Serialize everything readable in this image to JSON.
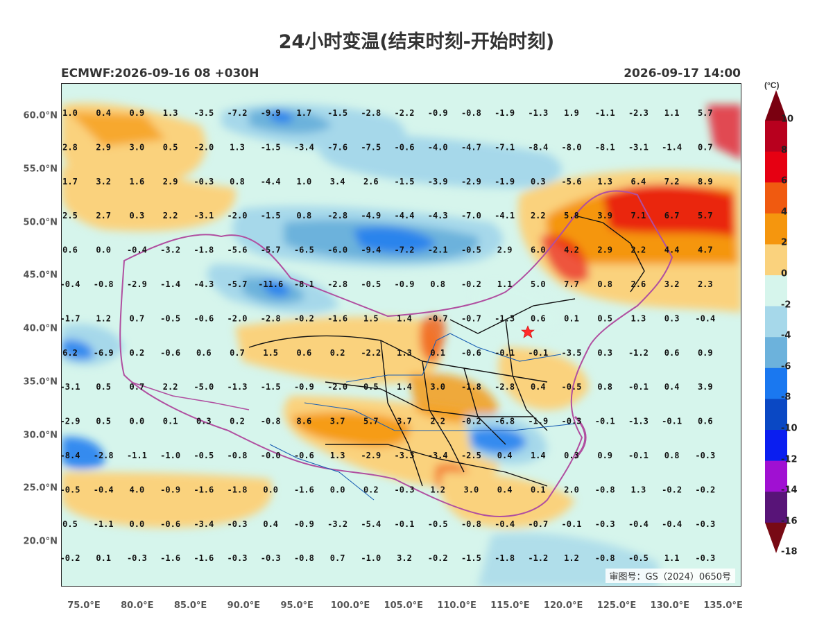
{
  "title": "24小时变温(结束时刻-开始时刻)",
  "model_info": "ECMWF:2026-09-16 08 +030H",
  "valid_time": "2026-09-17 14:00",
  "review_number": "审图号：GS（2024）0650号",
  "latitude_labels": [
    "60.0°N",
    "55.0°N",
    "50.0°N",
    "45.0°N",
    "40.0°N",
    "35.0°N",
    "30.0°N",
    "25.0°N",
    "20.0°N"
  ],
  "longitude_labels": [
    "75.0°E",
    "80.0°E",
    "85.0°E",
    "90.0°E",
    "95.0°E",
    "100.0°E",
    "105.0°E",
    "110.0°E",
    "115.0°E",
    "120.0°E",
    "125.0°E",
    "130.0°E",
    "135.0°E"
  ],
  "colorbar": {
    "unit": "(°C)",
    "labels": [
      "10",
      "8",
      "6",
      "4",
      "2",
      "0",
      "-2",
      "-4",
      "-6",
      "-8",
      "-10",
      "-12",
      "-14",
      "-16",
      "-18"
    ],
    "colors": [
      "#7a0010",
      "#b8001e",
      "#e60012",
      "#f05a10",
      "#f5960e",
      "#fad27d",
      "#d6f5ec",
      "#a6d8ea",
      "#6cb2dc",
      "#1a78f0",
      "#0a48c4",
      "#0a1ef0",
      "#a010d2",
      "#581478",
      "#780a14"
    ]
  },
  "grid_values": [
    [
      "1.0",
      "0.4",
      "0.9",
      "1.3",
      "-3.5",
      "-7.2",
      "-9.9",
      "1.7",
      "-1.5",
      "-2.8",
      "-2.2",
      "-0.9",
      "-0.8",
      "-1.9",
      "-1.3",
      "1.9",
      "-1.1",
      "-2.3",
      "1.1",
      "5.7"
    ],
    [
      "2.8",
      "2.9",
      "3.0",
      "0.5",
      "-2.0",
      "1.3",
      "-1.5",
      "-3.4",
      "-7.6",
      "-7.5",
      "-0.6",
      "-4.0",
      "-4.7",
      "-7.1",
      "-8.4",
      "-8.0",
      "-8.1",
      "-3.1",
      "-1.4",
      "0.7"
    ],
    [
      "1.7",
      "3.2",
      "1.6",
      "2.9",
      "-0.3",
      "0.8",
      "-4.4",
      "1.0",
      "3.4",
      "2.6",
      "-1.5",
      "-3.9",
      "-2.9",
      "-1.9",
      "0.3",
      "-5.6",
      "1.3",
      "6.4",
      "7.2",
      "8.9"
    ],
    [
      "2.5",
      "2.7",
      "0.3",
      "2.2",
      "-3.1",
      "-2.0",
      "-1.5",
      "0.8",
      "-2.8",
      "-4.9",
      "-4.4",
      "-4.3",
      "-7.0",
      "-4.1",
      "2.2",
      "5.8",
      "3.9",
      "7.1",
      "6.7",
      "5.7"
    ],
    [
      "0.6",
      "0.0",
      "-0.4",
      "-3.2",
      "-1.8",
      "-5.6",
      "-5.7",
      "-6.5",
      "-6.0",
      "-9.4",
      "-7.2",
      "-2.1",
      "-0.5",
      "2.9",
      "6.0",
      "4.2",
      "2.9",
      "2.2",
      "4.4",
      "4.7"
    ],
    [
      "-0.4",
      "-0.8",
      "-2.9",
      "-1.4",
      "-4.3",
      "-5.7",
      "-11.6",
      "-8.1",
      "-2.8",
      "-0.5",
      "-0.9",
      "0.8",
      "-0.2",
      "1.1",
      "5.0",
      "7.7",
      "0.8",
      "2.6",
      "3.2",
      "2.3"
    ],
    [
      "-1.7",
      "1.2",
      "0.7",
      "-0.5",
      "-0.6",
      "-2.0",
      "-2.8",
      "-0.2",
      "-1.6",
      "1.5",
      "1.4",
      "-0.7",
      "-0.7",
      "-1.3",
      "0.6",
      "0.1",
      "0.5",
      "1.3",
      "0.3",
      "-0.4"
    ],
    [
      "6.2",
      "-6.9",
      "0.2",
      "-0.6",
      "0.6",
      "0.7",
      "1.5",
      "0.6",
      "0.2",
      "-2.2",
      "1.3",
      "0.1",
      "-0.6",
      "-0.1",
      "-0.1",
      "-3.5",
      "0.3",
      "-1.2",
      "0.6",
      "0.9"
    ],
    [
      "-3.1",
      "0.5",
      "0.7",
      "2.2",
      "-5.0",
      "-1.3",
      "-1.5",
      "-0.9",
      "-2.0",
      "0.5",
      "1.4",
      "3.0",
      "-1.8",
      "-2.8",
      "0.4",
      "-0.5",
      "0.8",
      "-0.1",
      "0.4",
      "3.9"
    ],
    [
      "-2.9",
      "0.5",
      "0.0",
      "0.1",
      "0.3",
      "0.2",
      "-0.8",
      "8.6",
      "3.7",
      "5.7",
      "3.7",
      "2.2",
      "-0.2",
      "-6.8",
      "-1.9",
      "-0.3",
      "-0.1",
      "-1.3",
      "-0.1",
      "0.6"
    ],
    [
      "-8.4",
      "-2.8",
      "-1.1",
      "-1.0",
      "-0.5",
      "-0.8",
      "-0.0",
      "-0.6",
      "1.3",
      "-2.9",
      "-3.3",
      "-3.4",
      "-2.5",
      "0.4",
      "1.4",
      "0.3",
      "0.9",
      "-0.1",
      "0.8",
      "-0.3"
    ],
    [
      "-0.5",
      "-0.4",
      "4.0",
      "-0.9",
      "-1.6",
      "-1.8",
      "0.0",
      "-1.6",
      "0.0",
      "0.2",
      "-0.3",
      "1.2",
      "3.0",
      "0.4",
      "0.1",
      "2.0",
      "-0.8",
      "1.3",
      "-0.2",
      "-0.2"
    ],
    [
      "0.5",
      "-1.1",
      "0.0",
      "-0.6",
      "-3.4",
      "-0.3",
      "0.4",
      "-0.9",
      "-3.2",
      "-5.4",
      "-0.1",
      "-0.5",
      "-0.8",
      "-0.4",
      "-0.7",
      "-0.1",
      "-0.3",
      "-0.4",
      "-0.4",
      "-0.3"
    ],
    [
      "-0.2",
      "0.1",
      "-0.3",
      "-1.6",
      "-1.6",
      "-0.3",
      "-0.3",
      "-0.8",
      "0.7",
      "-1.0",
      "3.2",
      "-0.2",
      "-1.5",
      "-1.8",
      "-1.2",
      "1.2",
      "-0.8",
      "-0.5",
      "1.1",
      "-0.3"
    ]
  ],
  "capital_marker": "capital-star-icon"
}
